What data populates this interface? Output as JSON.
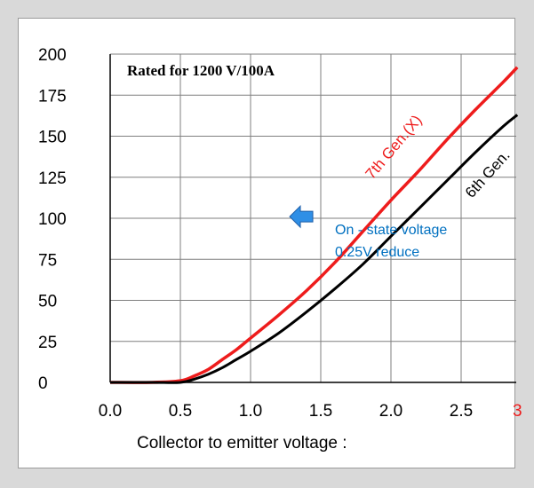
{
  "chart_data": {
    "type": "line",
    "title": "Rated for 1200 V/100A",
    "xlabel": "Collector to emitter voltage :",
    "ylabel": "",
    "xlim": [
      0.0,
      2.9
    ],
    "ylim": [
      0,
      200
    ],
    "x_ticks": [
      "0.0",
      "0.5",
      "1.0",
      "1.5",
      "2.0",
      "2.5",
      "3"
    ],
    "y_ticks": [
      "0",
      "25",
      "50",
      "75",
      "100",
      "125",
      "150",
      "175",
      "200"
    ],
    "grid": true,
    "series": [
      {
        "name": "7th Gen.(X)",
        "color": "#ee1c1c",
        "x": [
          0.0,
          0.3,
          0.5,
          0.6,
          0.7,
          0.8,
          0.9,
          1.0,
          1.2,
          1.4,
          1.6,
          1.8,
          2.0,
          2.2,
          2.4,
          2.6,
          2.8,
          2.9
        ],
        "y": [
          0,
          0,
          1,
          4,
          8,
          14,
          20,
          27,
          41,
          56,
          73,
          92,
          111,
          129,
          148,
          166,
          183,
          192
        ]
      },
      {
        "name": "6th Gen.",
        "color": "#000000",
        "x": [
          0.0,
          0.3,
          0.5,
          0.6,
          0.7,
          0.8,
          0.9,
          1.0,
          1.2,
          1.4,
          1.6,
          1.8,
          2.0,
          2.2,
          2.4,
          2.6,
          2.8,
          2.9
        ],
        "y": [
          0,
          0,
          0,
          2,
          5,
          9,
          14,
          19,
          30,
          43,
          57,
          72,
          89,
          106,
          123,
          140,
          156,
          163
        ]
      }
    ],
    "annotation": {
      "line1": "On - state voltage",
      "line2": "0.25V reduce",
      "color": "#0070c0",
      "arrow_color": "#2f8fe6",
      "at": [
        1.38,
        101
      ]
    }
  }
}
